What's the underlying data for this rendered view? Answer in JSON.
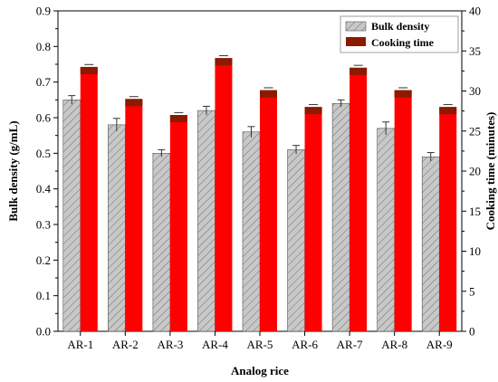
{
  "chart_data": {
    "type": "bar",
    "xlabel": "Analog rice",
    "ylabel_left": "Bulk density (g/mL)",
    "ylabel_right": "Cooking time (minutes)",
    "ylim_left": [
      0,
      0.9
    ],
    "ylim_right": [
      0,
      40
    ],
    "yticks_left": [
      "0.0",
      "0.1",
      "0.2",
      "0.3",
      "0.4",
      "0.5",
      "0.6",
      "0.7",
      "0.8",
      "0.9"
    ],
    "yticks_right": [
      "0",
      "5",
      "10",
      "15",
      "20",
      "25",
      "30",
      "35",
      "40"
    ],
    "categories": [
      "AR-1",
      "AR-2",
      "AR-3",
      "AR-4",
      "AR-5",
      "AR-6",
      "AR-7",
      "AR-8",
      "AR-9"
    ],
    "legend_position": "top-right",
    "grid": false,
    "series": [
      {
        "name": "Bulk density",
        "axis": "left",
        "values": [
          0.65,
          0.58,
          0.5,
          0.62,
          0.56,
          0.51,
          0.64,
          0.57,
          0.49
        ],
        "errors": [
          0.012,
          0.018,
          0.01,
          0.012,
          0.015,
          0.012,
          0.01,
          0.018,
          0.012
        ],
        "color": "#c8c8c8",
        "pattern": "diagonal-hatch"
      },
      {
        "name": "Cooking time",
        "axis": "right",
        "values": [
          33.0,
          29.0,
          27.0,
          34.1,
          30.1,
          28.0,
          32.9,
          30.1,
          28.0
        ],
        "errors": [
          0.3,
          0.3,
          0.3,
          0.3,
          0.3,
          0.3,
          0.3,
          0.3,
          0.3
        ],
        "color": "#ff0000",
        "cap_color": "#8b1a00"
      }
    ]
  }
}
